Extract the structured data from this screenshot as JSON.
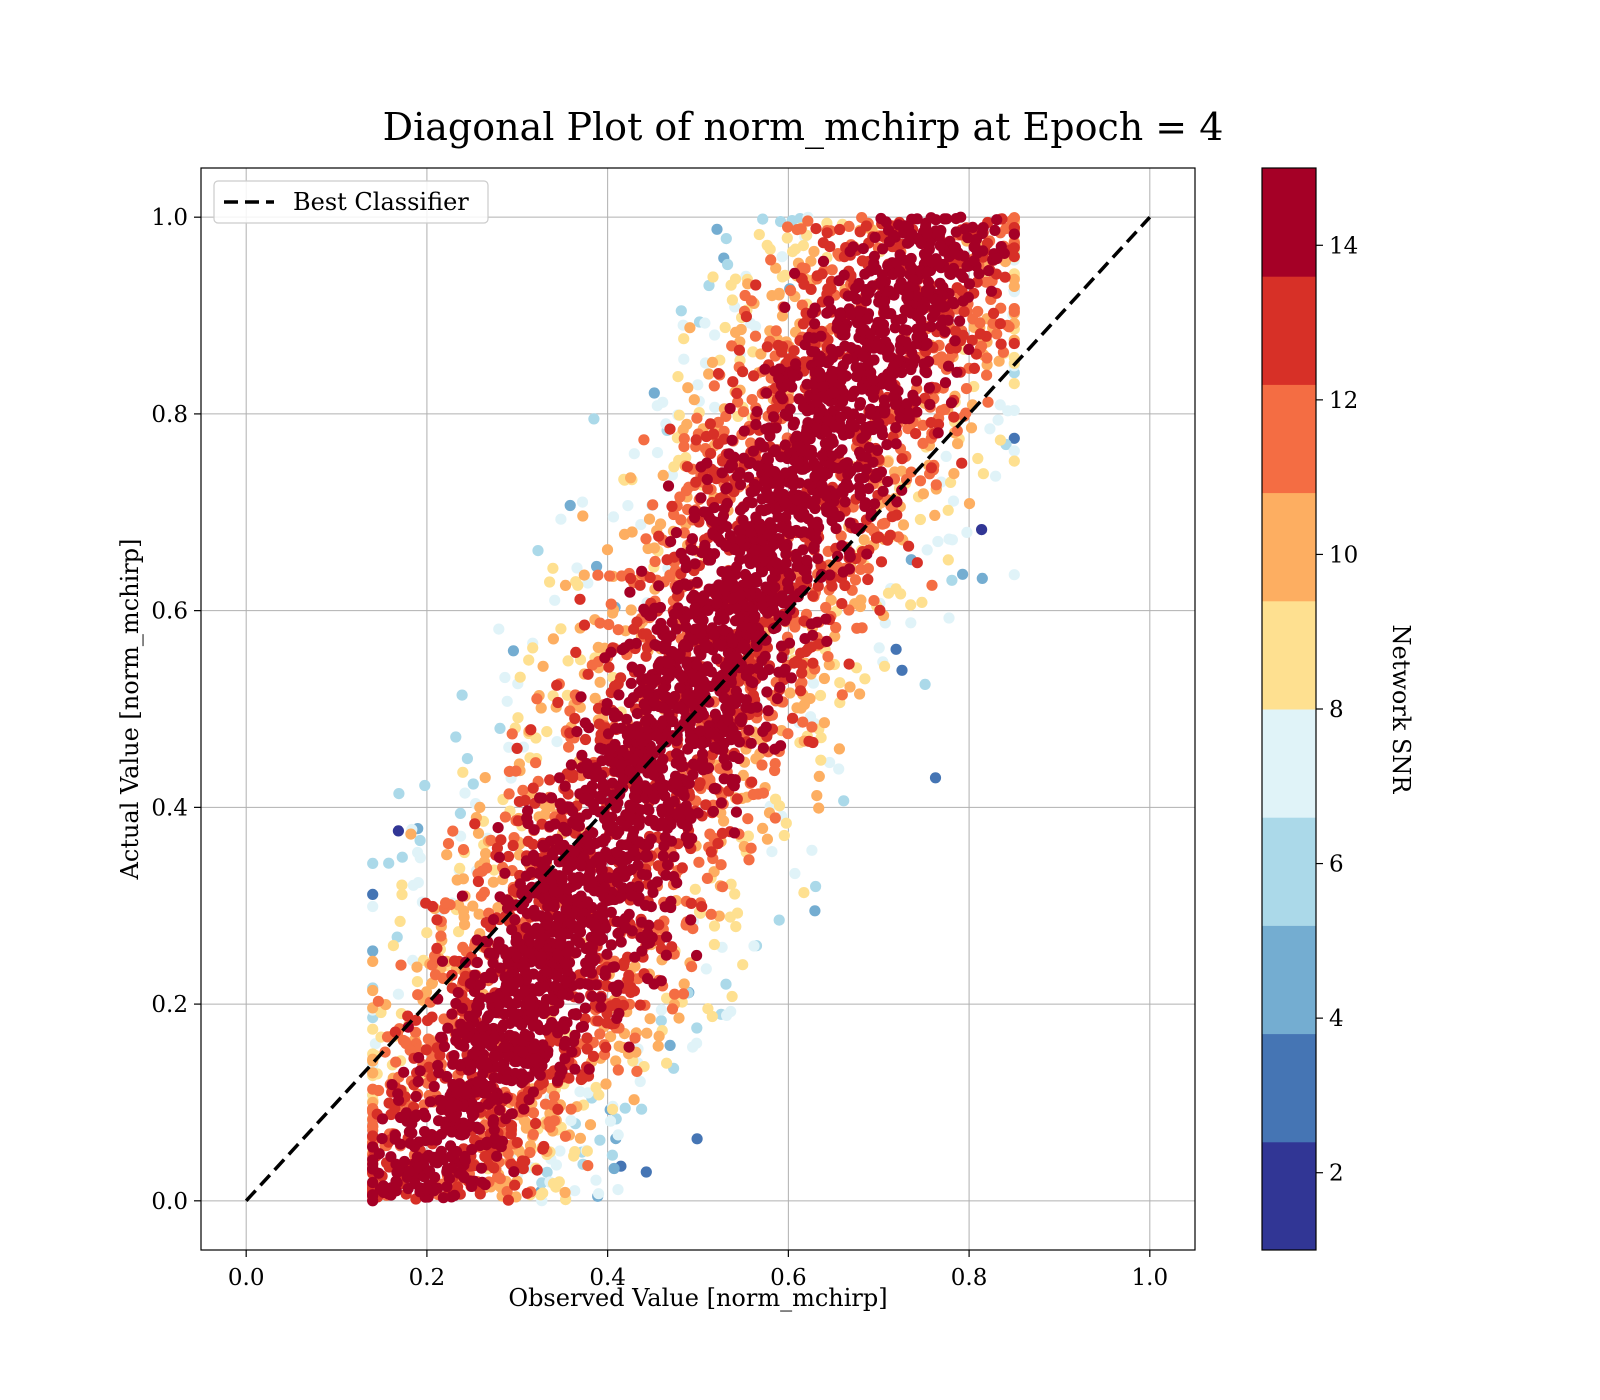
{
  "chart_data": {
    "type": "scatter",
    "title": "Diagonal Plot of norm_mchirp at Epoch = 4",
    "xlabel": "Observed Value [norm_mchirp]",
    "ylabel": "Actual Value [norm_mchirp]",
    "xlim": [
      -0.05,
      1.05
    ],
    "ylim": [
      -0.05,
      1.05
    ],
    "xticks": [
      "0.0",
      "0.2",
      "0.4",
      "0.6",
      "0.8",
      "1.0"
    ],
    "yticks": [
      "0.0",
      "0.2",
      "0.4",
      "0.6",
      "0.8",
      "1.0"
    ],
    "grid": true,
    "legend": {
      "position": "top-left",
      "entries": [
        "Best Classifier"
      ]
    },
    "reference_line": {
      "name": "Best Classifier",
      "style": "dashed",
      "color": "#000000",
      "x": [
        0.0,
        1.0
      ],
      "y": [
        0.0,
        1.0
      ]
    },
    "colorbar": {
      "label": "Network SNR",
      "range": [
        1,
        15
      ],
      "ticks": [
        "2",
        "4",
        "6",
        "8",
        "10",
        "12",
        "14"
      ],
      "tick_values": [
        2,
        4,
        6,
        8,
        10,
        12,
        14
      ],
      "colors": [
        "#313695",
        "#4575b4",
        "#74add1",
        "#abd9e9",
        "#e0f3f8",
        "#fee090",
        "#fdae61",
        "#f46d43",
        "#d73027",
        "#a50026"
      ]
    },
    "point_cloud": {
      "description_of_shape": "band of points around the diagonal, observed range ~0.15-0.84, actual range 0.0-1.0",
      "colormap_value": "Network SNR"
    }
  }
}
